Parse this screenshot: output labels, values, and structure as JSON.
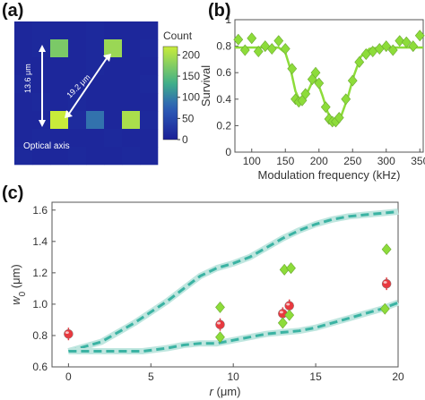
{
  "panel_labels": [
    "(a)",
    "(b)",
    "(c)"
  ],
  "colors": {
    "green": "#8ddc3a",
    "red": "#e8393f",
    "teal": "#3bb3a3",
    "teal_band": "#bfe6df",
    "map_bg": "#1a1f97",
    "map_mid": "#2e5fb8",
    "map_bright": "#c9ec3a"
  },
  "chart_data": [
    {
      "panel": "(a)",
      "type": "heatmap",
      "colorbar_title": "Count",
      "colorbar_ticks": [
        "200",
        "150",
        "100",
        "50",
        "0"
      ],
      "colorbar_range": [
        0,
        220
      ],
      "grid_size": [
        8,
        8
      ],
      "values": [
        [
          10,
          12,
          10,
          10,
          12,
          10,
          10,
          10
        ],
        [
          10,
          12,
          170,
          10,
          12,
          190,
          10,
          12
        ],
        [
          10,
          10,
          10,
          10,
          12,
          10,
          10,
          10
        ],
        [
          12,
          10,
          10,
          10,
          10,
          10,
          10,
          12
        ],
        [
          10,
          12,
          10,
          12,
          10,
          10,
          10,
          10
        ],
        [
          10,
          10,
          220,
          15,
          90,
          10,
          200,
          12
        ],
        [
          10,
          12,
          10,
          10,
          10,
          12,
          10,
          10
        ],
        [
          12,
          10,
          10,
          12,
          10,
          10,
          12,
          10
        ]
      ],
      "annotations": {
        "vertical_distance": "13.6 μm",
        "diagonal_distance": "19.2 μm",
        "axis_label": "Optical axis"
      }
    },
    {
      "panel": "(b)",
      "type": "scatter",
      "ylabel": "Survival",
      "xlabel": "Modulation frequency (kHz)",
      "xlim": [
        75,
        355
      ],
      "ylim": [
        0,
        1
      ],
      "xticks": [
        "100",
        "150",
        "200",
        "250",
        "300",
        "350"
      ],
      "yticks": [
        "0",
        "0.2",
        "0.4",
        "0.6",
        "0.8",
        "1"
      ],
      "series": [
        {
          "points": [
            [
              80,
              0.85
            ],
            [
              90,
              0.77
            ],
            [
              100,
              0.86
            ],
            [
              110,
              0.76
            ],
            [
              120,
              0.8
            ],
            [
              130,
              0.78
            ],
            [
              140,
              0.84
            ],
            [
              150,
              0.78
            ],
            [
              160,
              0.63
            ],
            [
              165,
              0.4
            ],
            [
              170,
              0.38
            ],
            [
              175,
              0.39
            ],
            [
              180,
              0.44
            ],
            [
              190,
              0.55
            ],
            [
              195,
              0.6
            ],
            [
              200,
              0.52
            ],
            [
              210,
              0.34
            ],
            [
              215,
              0.25
            ],
            [
              220,
              0.23
            ],
            [
              225,
              0.23
            ],
            [
              230,
              0.26
            ],
            [
              240,
              0.4
            ],
            [
              250,
              0.54
            ],
            [
              260,
              0.68
            ],
            [
              270,
              0.74
            ],
            [
              280,
              0.76
            ],
            [
              290,
              0.78
            ],
            [
              300,
              0.8
            ],
            [
              310,
              0.77
            ],
            [
              320,
              0.84
            ],
            [
              330,
              0.83
            ],
            [
              340,
              0.8
            ],
            [
              350,
              0.88
            ]
          ]
        }
      ],
      "fit": [
        [
          75,
          0.79
        ],
        [
          140,
          0.79
        ],
        [
          150,
          0.75
        ],
        [
          158,
          0.62
        ],
        [
          165,
          0.46
        ],
        [
          172,
          0.38
        ],
        [
          180,
          0.42
        ],
        [
          190,
          0.53
        ],
        [
          197,
          0.54
        ],
        [
          205,
          0.43
        ],
        [
          213,
          0.3
        ],
        [
          222,
          0.23
        ],
        [
          232,
          0.26
        ],
        [
          242,
          0.4
        ],
        [
          252,
          0.58
        ],
        [
          262,
          0.72
        ],
        [
          275,
          0.78
        ],
        [
          290,
          0.79
        ],
        [
          355,
          0.79
        ]
      ]
    },
    {
      "panel": "(c)",
      "type": "scatter",
      "xlabel": "r (μm)",
      "ylabel": "w0 (μm)",
      "xlim": [
        -1,
        20
      ],
      "ylim": [
        0.6,
        1.65
      ],
      "xticks": [
        "0",
        "5",
        "10",
        "15",
        "20"
      ],
      "yticks": [
        "0.6",
        "0.8",
        "1.0",
        "1.2",
        "1.4",
        "1.6"
      ],
      "series": [
        {
          "color": "red",
          "points": [
            [
              0,
              0.81
            ],
            [
              9.2,
              0.87
            ],
            [
              13.0,
              0.94
            ],
            [
              13.4,
              0.99
            ],
            [
              19.3,
              1.13
            ]
          ]
        },
        {
          "color": "green",
          "points": [
            [
              9.2,
              0.79
            ],
            [
              9.2,
              0.98
            ],
            [
              13.0,
              0.88
            ],
            [
              13.1,
              1.22
            ],
            [
              13.4,
              0.93
            ],
            [
              13.5,
              1.23
            ],
            [
              19.2,
              0.97
            ],
            [
              19.3,
              1.35
            ]
          ]
        }
      ],
      "bounds": {
        "upper": [
          [
            0,
            0.7
          ],
          [
            2,
            0.76
          ],
          [
            4,
            0.88
          ],
          [
            6,
            1.02
          ],
          [
            7,
            1.1
          ],
          [
            8,
            1.18
          ],
          [
            9,
            1.23
          ],
          [
            10,
            1.26
          ],
          [
            11,
            1.3
          ],
          [
            12,
            1.36
          ],
          [
            13,
            1.42
          ],
          [
            14,
            1.47
          ],
          [
            15,
            1.51
          ],
          [
            16,
            1.54
          ],
          [
            17,
            1.56
          ],
          [
            18,
            1.57
          ],
          [
            19,
            1.58
          ],
          [
            20,
            1.59
          ]
        ],
        "lower": [
          [
            0,
            0.7
          ],
          [
            3,
            0.7
          ],
          [
            4.5,
            0.7
          ],
          [
            6,
            0.72
          ],
          [
            7,
            0.74
          ],
          [
            8,
            0.75
          ],
          [
            9,
            0.75
          ],
          [
            10,
            0.77
          ],
          [
            11,
            0.79
          ],
          [
            12,
            0.81
          ],
          [
            13,
            0.82
          ],
          [
            14,
            0.83
          ],
          [
            15,
            0.85
          ],
          [
            16,
            0.88
          ],
          [
            17,
            0.91
          ],
          [
            18,
            0.94
          ],
          [
            19,
            0.97
          ],
          [
            20,
            1.01
          ]
        ]
      }
    }
  ]
}
